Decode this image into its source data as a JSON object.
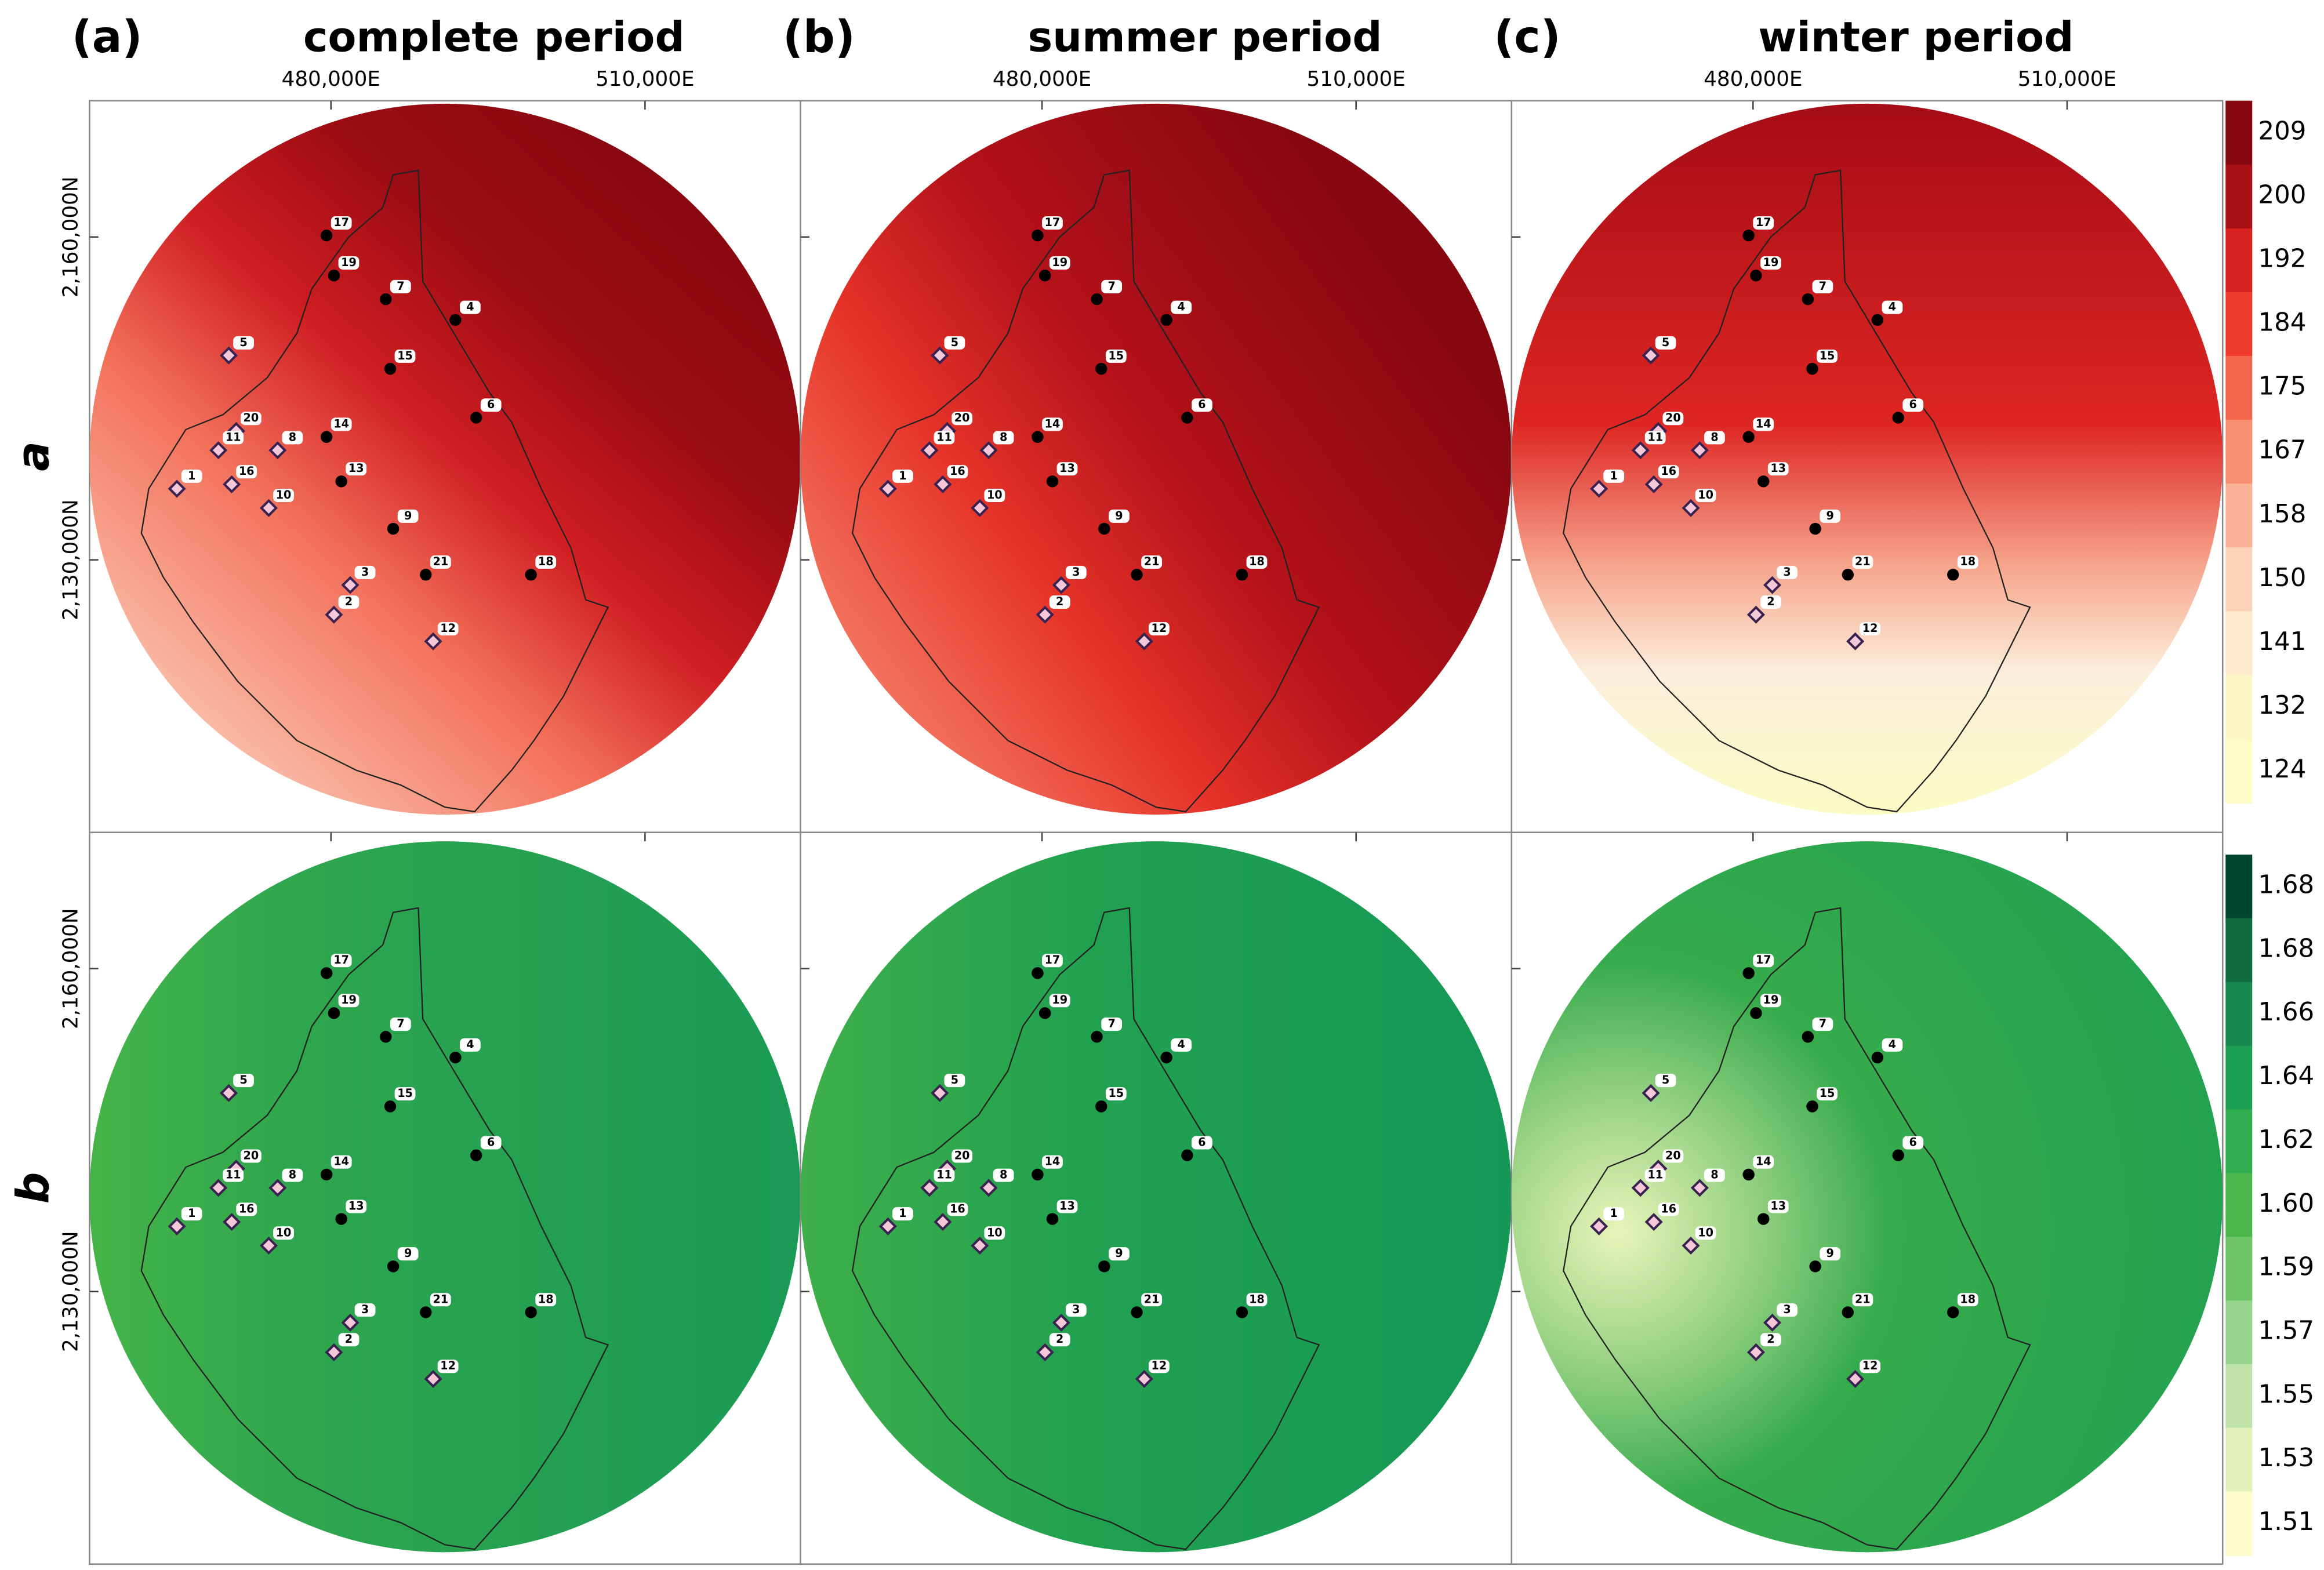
{
  "panel_tags": [
    "(a)",
    "(b)",
    "(c)"
  ],
  "titles": [
    "complete period",
    "summer period",
    "winter period"
  ],
  "row_labels": [
    "a",
    "b"
  ],
  "x_ticks": [
    "480,000E",
    "510,000E"
  ],
  "y_ticks": [
    "2,160,000N",
    "2,130,000N"
  ],
  "stations": [
    "1",
    "2",
    "3",
    "4",
    "5",
    "6",
    "7",
    "8",
    "9",
    "10",
    "11",
    "12",
    "13",
    "14",
    "15",
    "16",
    "17",
    "18",
    "19",
    "20",
    "21"
  ],
  "colorbar_a": [
    "209",
    "200",
    "192",
    "184",
    "175",
    "167",
    "158",
    "150",
    "141",
    "132",
    "124"
  ],
  "colorbar_b": [
    "1.68",
    "1.68",
    "1.66",
    "1.64",
    "1.62",
    "1.60",
    "1.59",
    "1.57",
    "1.55",
    "1.53",
    "1.51"
  ]
}
